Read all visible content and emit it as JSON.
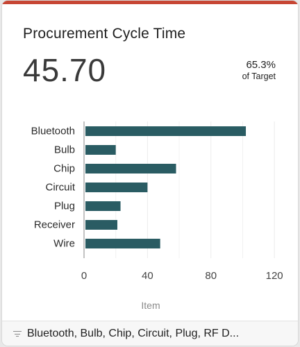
{
  "card": {
    "title": "Procurement Cycle Time",
    "metric_value": "45.70",
    "target_percent": "65.3%",
    "target_label": "of Target",
    "accent_color": "#c74634",
    "bar_color": "#2a5c63"
  },
  "chart_data": {
    "type": "bar",
    "orientation": "horizontal",
    "categories": [
      "Bluetooth",
      "Bulb",
      "Chip",
      "Circuit",
      "Plug",
      "Receiver",
      "Wire"
    ],
    "values": [
      102,
      20,
      58,
      40,
      23,
      21,
      48
    ],
    "xlim": [
      0,
      130
    ],
    "xticks": [
      0,
      40,
      80,
      120
    ],
    "xlabel": "Item",
    "grid": true
  },
  "footer": {
    "filter_icon": "filter-icon",
    "filter_text": "Bluetooth, Bulb, Chip, Circuit, Plug, RF D..."
  }
}
